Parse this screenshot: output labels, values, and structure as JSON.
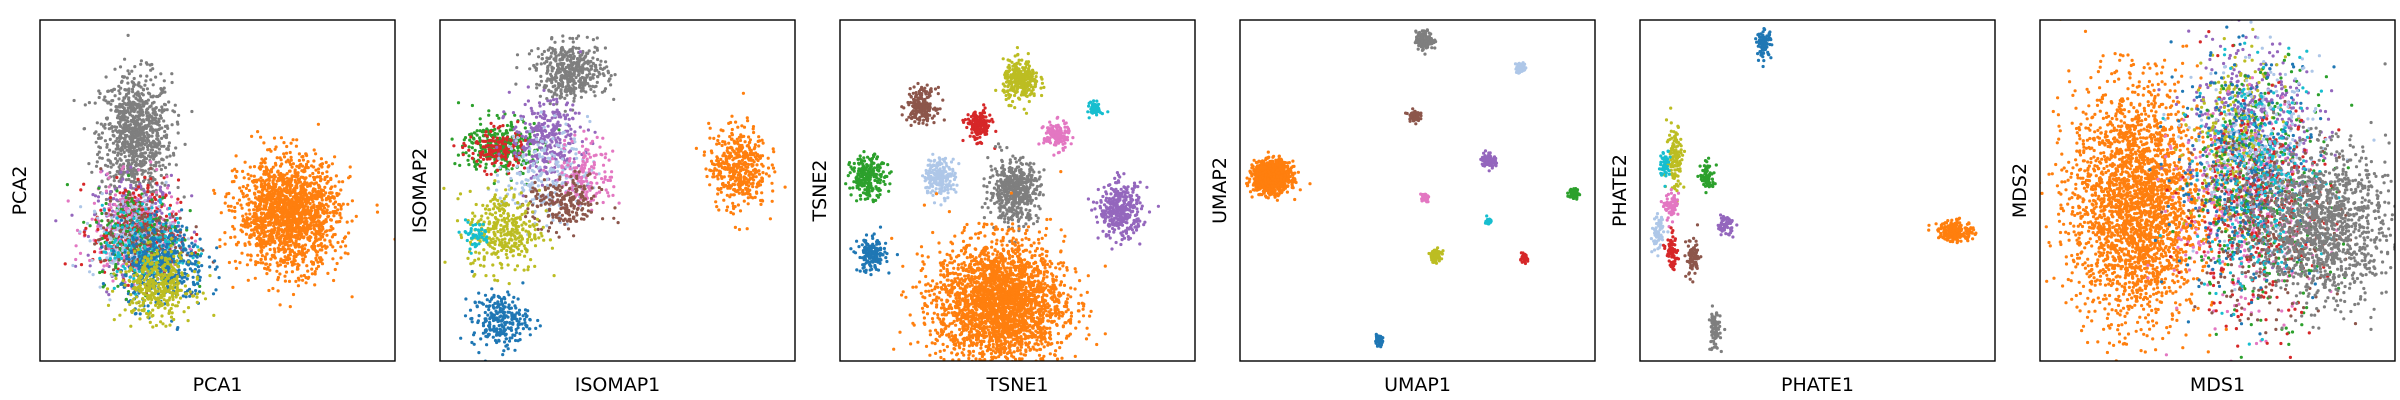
{
  "chart_data": [
    {
      "type": "scatter",
      "xlabel": "PCA1",
      "ylabel": "PCA2",
      "xlim": [
        0,
        100
      ],
      "ylim": [
        0,
        100
      ],
      "clusters": [
        {
          "color": "#7f7f7f",
          "cx": 27,
          "cy": 66,
          "sx": 5,
          "sy": 9,
          "n": 900
        },
        {
          "color": "#9467bd",
          "cx": 27,
          "cy": 40,
          "sx": 6,
          "sy": 7,
          "n": 280
        },
        {
          "color": "#e377c2",
          "cx": 26,
          "cy": 38,
          "sx": 6,
          "sy": 7,
          "n": 280
        },
        {
          "color": "#d62728",
          "cx": 27,
          "cy": 39,
          "sx": 6,
          "sy": 7,
          "n": 220
        },
        {
          "color": "#2ca02c",
          "cx": 28,
          "cy": 37,
          "sx": 6,
          "sy": 7,
          "n": 220
        },
        {
          "color": "#aec7e8",
          "cx": 26,
          "cy": 36,
          "sx": 6,
          "sy": 6,
          "n": 200
        },
        {
          "color": "#8c564b",
          "cx": 29,
          "cy": 35,
          "sx": 6,
          "sy": 6,
          "n": 200
        },
        {
          "color": "#17becf",
          "cx": 30,
          "cy": 33,
          "sx": 6,
          "sy": 6,
          "n": 180
        },
        {
          "color": "#1f77b4",
          "cx": 35,
          "cy": 28,
          "sx": 6,
          "sy": 6,
          "n": 380
        },
        {
          "color": "#bcbd22",
          "cx": 33,
          "cy": 22,
          "sx": 5,
          "sy": 5,
          "n": 380
        },
        {
          "color": "#ff7f0e",
          "cx": 70,
          "cy": 43,
          "sx": 7,
          "sy": 8,
          "n": 1700
        }
      ]
    },
    {
      "type": "scatter",
      "xlabel": "ISOMAP1",
      "ylabel": "ISOMAP2",
      "xlim": [
        0,
        100
      ],
      "ylim": [
        0,
        100
      ],
      "clusters": [
        {
          "color": "#7f7f7f",
          "cx": 37,
          "cy": 85,
          "sx": 5,
          "sy": 4,
          "n": 450
        },
        {
          "color": "#2ca02c",
          "cx": 17,
          "cy": 63,
          "sx": 5,
          "sy": 4,
          "n": 320
        },
        {
          "color": "#d62728",
          "cx": 16,
          "cy": 62,
          "sx": 4,
          "sy": 3,
          "n": 150
        },
        {
          "color": "#9467bd",
          "cx": 30,
          "cy": 65,
          "sx": 5,
          "sy": 6,
          "n": 300
        },
        {
          "color": "#aec7e8",
          "cx": 30,
          "cy": 55,
          "sx": 6,
          "sy": 7,
          "n": 220
        },
        {
          "color": "#e377c2",
          "cx": 41,
          "cy": 55,
          "sx": 4,
          "sy": 5,
          "n": 160
        },
        {
          "color": "#8c564b",
          "cx": 35,
          "cy": 46,
          "sx": 5,
          "sy": 4,
          "n": 220
        },
        {
          "color": "#bcbd22",
          "cx": 18,
          "cy": 38,
          "sx": 5,
          "sy": 6,
          "n": 350
        },
        {
          "color": "#17becf",
          "cx": 10,
          "cy": 37,
          "sx": 2,
          "sy": 2,
          "n": 50
        },
        {
          "color": "#1f77b4",
          "cx": 17,
          "cy": 12,
          "sx": 4,
          "sy": 4,
          "n": 250
        },
        {
          "color": "#ff7f0e",
          "cx": 84,
          "cy": 57,
          "sx": 4,
          "sy": 6,
          "n": 450
        }
      ]
    },
    {
      "type": "scatter",
      "xlabel": "TSNE1",
      "ylabel": "TSNE2",
      "xlim": [
        0,
        100
      ],
      "ylim": [
        0,
        100
      ],
      "clusters": [
        {
          "color": "#bcbd22",
          "cx": 51,
          "cy": 82,
          "sx": 2.5,
          "sy": 3,
          "n": 300
        },
        {
          "color": "#8c564b",
          "cx": 23,
          "cy": 75,
          "sx": 2,
          "sy": 2.5,
          "n": 200
        },
        {
          "color": "#d62728",
          "cx": 39,
          "cy": 69,
          "sx": 1.8,
          "sy": 2.2,
          "n": 160
        },
        {
          "color": "#17becf",
          "cx": 72,
          "cy": 74,
          "sx": 0.8,
          "sy": 1,
          "n": 60
        },
        {
          "color": "#e377c2",
          "cx": 61,
          "cy": 66,
          "sx": 1.8,
          "sy": 2,
          "n": 150
        },
        {
          "color": "#2ca02c",
          "cx": 8,
          "cy": 54,
          "sx": 2.5,
          "sy": 3,
          "n": 230
        },
        {
          "color": "#aec7e8",
          "cx": 28,
          "cy": 54,
          "sx": 2.2,
          "sy": 2.8,
          "n": 200
        },
        {
          "color": "#7f7f7f",
          "cx": 49,
          "cy": 50,
          "sx": 3.5,
          "sy": 4.5,
          "n": 500
        },
        {
          "color": "#9467bd",
          "cx": 79,
          "cy": 44,
          "sx": 3,
          "sy": 4,
          "n": 360
        },
        {
          "color": "#1f77b4",
          "cx": 9,
          "cy": 31,
          "sx": 2,
          "sy": 2.5,
          "n": 170
        },
        {
          "color": "#ff7f0e",
          "cx": 45,
          "cy": 17,
          "sx": 9,
          "sy": 9,
          "n": 2600
        }
      ]
    },
    {
      "type": "scatter",
      "xlabel": "UMAP1",
      "ylabel": "UMAP2",
      "xlim": [
        0,
        100
      ],
      "ylim": [
        0,
        100
      ],
      "clusters": [
        {
          "color": "#7f7f7f",
          "cx": 52,
          "cy": 94,
          "sx": 1.2,
          "sy": 1.3,
          "n": 160
        },
        {
          "color": "#aec7e8",
          "cx": 79,
          "cy": 86,
          "sx": 0.7,
          "sy": 0.8,
          "n": 60
        },
        {
          "color": "#8c564b",
          "cx": 49,
          "cy": 72,
          "sx": 0.8,
          "sy": 0.8,
          "n": 60
        },
        {
          "color": "#ff7f0e",
          "cx": 9,
          "cy": 54,
          "sx": 2.5,
          "sy": 2.2,
          "n": 1200
        },
        {
          "color": "#9467bd",
          "cx": 70,
          "cy": 59,
          "sx": 1,
          "sy": 1.1,
          "n": 90
        },
        {
          "color": "#2ca02c",
          "cx": 94,
          "cy": 49,
          "sx": 0.7,
          "sy": 0.8,
          "n": 60
        },
        {
          "color": "#e377c2",
          "cx": 52,
          "cy": 48,
          "sx": 0.6,
          "sy": 0.6,
          "n": 40
        },
        {
          "color": "#17becf",
          "cx": 70,
          "cy": 41,
          "sx": 0.4,
          "sy": 0.5,
          "n": 30
        },
        {
          "color": "#bcbd22",
          "cx": 55,
          "cy": 31,
          "sx": 0.9,
          "sy": 1,
          "n": 80
        },
        {
          "color": "#d62728",
          "cx": 80,
          "cy": 30,
          "sx": 0.5,
          "sy": 0.6,
          "n": 40
        },
        {
          "color": "#1f77b4",
          "cx": 39,
          "cy": 6,
          "sx": 0.6,
          "sy": 0.7,
          "n": 50
        }
      ]
    },
    {
      "type": "scatter",
      "xlabel": "PHATE1",
      "ylabel": "PHATE2",
      "xlim": [
        0,
        100
      ],
      "ylim": [
        0,
        100
      ],
      "clusters": [
        {
          "color": "#1f77b4",
          "cx": 35,
          "cy": 93,
          "sx": 1,
          "sy": 2,
          "n": 90
        },
        {
          "color": "#bcbd22",
          "cx": 10,
          "cy": 60,
          "sx": 1.2,
          "sy": 5,
          "n": 120
        },
        {
          "color": "#17becf",
          "cx": 7,
          "cy": 58,
          "sx": 0.7,
          "sy": 2,
          "n": 60
        },
        {
          "color": "#2ca02c",
          "cx": 19,
          "cy": 54,
          "sx": 1,
          "sy": 2,
          "n": 70
        },
        {
          "color": "#e377c2",
          "cx": 9,
          "cy": 45,
          "sx": 1,
          "sy": 2,
          "n": 70
        },
        {
          "color": "#9467bd",
          "cx": 24,
          "cy": 40,
          "sx": 1.2,
          "sy": 1.5,
          "n": 60
        },
        {
          "color": "#aec7e8",
          "cx": 5,
          "cy": 37,
          "sx": 0.8,
          "sy": 2.5,
          "n": 70
        },
        {
          "color": "#d62728",
          "cx": 9,
          "cy": 32,
          "sx": 0.8,
          "sy": 2.5,
          "n": 70
        },
        {
          "color": "#8c564b",
          "cx": 15,
          "cy": 30,
          "sx": 1,
          "sy": 3,
          "n": 80
        },
        {
          "color": "#7f7f7f",
          "cx": 21,
          "cy": 9,
          "sx": 0.8,
          "sy": 3,
          "n": 80
        },
        {
          "color": "#ff7f0e",
          "cx": 89,
          "cy": 38,
          "sx": 2.5,
          "sy": 1.5,
          "n": 200
        }
      ]
    },
    {
      "type": "scatter",
      "xlabel": "MDS1",
      "ylabel": "MDS2",
      "xlim": [
        0,
        100
      ],
      "ylim": [
        0,
        100
      ],
      "clusters": [
        {
          "color": "#ff7f0e",
          "cx": 27,
          "cy": 46,
          "sx": 9,
          "sy": 17,
          "n": 2600
        },
        {
          "color": "#9467bd",
          "cx": 60,
          "cy": 68,
          "sx": 9,
          "sy": 13,
          "n": 400
        },
        {
          "color": "#bcbd22",
          "cx": 55,
          "cy": 64,
          "sx": 6,
          "sy": 12,
          "n": 300
        },
        {
          "color": "#e377c2",
          "cx": 58,
          "cy": 42,
          "sx": 10,
          "sy": 15,
          "n": 350
        },
        {
          "color": "#2ca02c",
          "cx": 63,
          "cy": 50,
          "sx": 10,
          "sy": 18,
          "n": 350
        },
        {
          "color": "#d62728",
          "cx": 60,
          "cy": 45,
          "sx": 10,
          "sy": 17,
          "n": 300
        },
        {
          "color": "#1f77b4",
          "cx": 58,
          "cy": 55,
          "sx": 10,
          "sy": 18,
          "n": 350
        },
        {
          "color": "#aec7e8",
          "cx": 62,
          "cy": 60,
          "sx": 9,
          "sy": 14,
          "n": 250
        },
        {
          "color": "#8c564b",
          "cx": 65,
          "cy": 40,
          "sx": 10,
          "sy": 14,
          "n": 300
        },
        {
          "color": "#17becf",
          "cx": 62,
          "cy": 52,
          "sx": 9,
          "sy": 16,
          "n": 250
        },
        {
          "color": "#7f7f7f",
          "cx": 80,
          "cy": 40,
          "sx": 9,
          "sy": 11,
          "n": 1200
        }
      ]
    }
  ]
}
